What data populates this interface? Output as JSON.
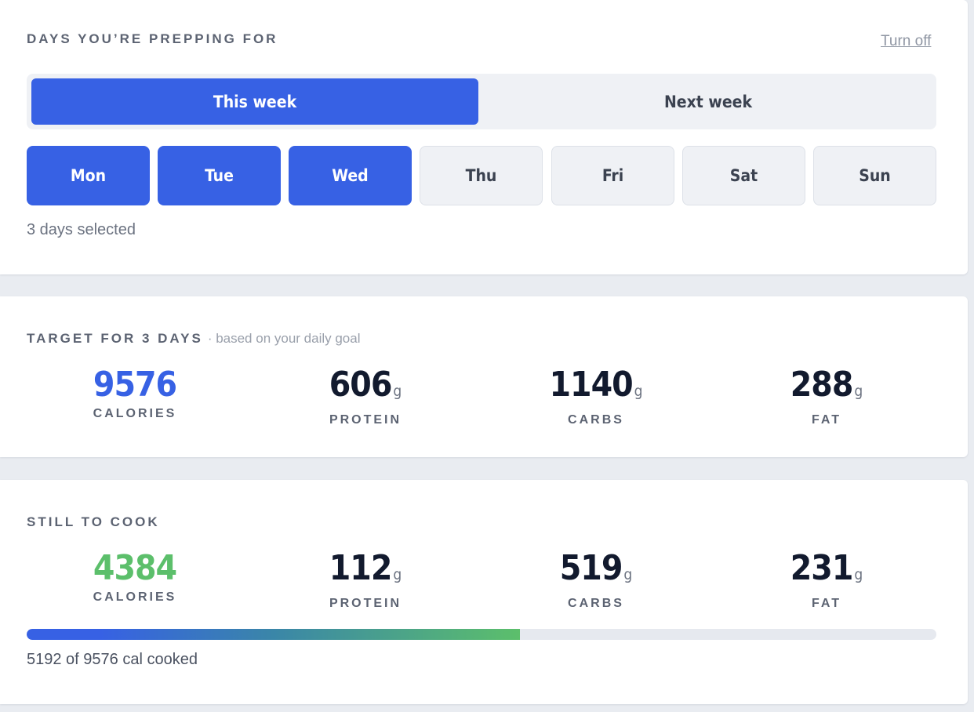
{
  "prep": {
    "title": "DAYS YOU’RE PREPPING FOR",
    "turn_off_label": "Turn off",
    "week_options": [
      "This week",
      "Next week"
    ],
    "selected_week": "This week",
    "days": [
      {
        "label": "Mon",
        "selected": true
      },
      {
        "label": "Tue",
        "selected": true
      },
      {
        "label": "Wed",
        "selected": true
      },
      {
        "label": "Thu",
        "selected": false
      },
      {
        "label": "Fri",
        "selected": false
      },
      {
        "label": "Sat",
        "selected": false
      },
      {
        "label": "Sun",
        "selected": false
      }
    ],
    "days_selected_text": "3 days selected"
  },
  "target": {
    "title": "TARGET FOR 3 DAYS",
    "subtitle": "· based on your daily goal",
    "calories": {
      "value": "9576",
      "label": "CALORIES"
    },
    "protein": {
      "value": "606",
      "unit": "g",
      "label": "PROTEIN"
    },
    "carbs": {
      "value": "1140",
      "unit": "g",
      "label": "CARBS"
    },
    "fat": {
      "value": "288",
      "unit": "g",
      "label": "FAT"
    }
  },
  "cook": {
    "title": "STILL TO COOK",
    "calories": {
      "value": "4384",
      "label": "CALORIES"
    },
    "protein": {
      "value": "112",
      "unit": "g",
      "label": "PROTEIN"
    },
    "carbs": {
      "value": "519",
      "unit": "g",
      "label": "CARBS"
    },
    "fat": {
      "value": "231",
      "unit": "g",
      "label": "FAT"
    },
    "progress_cooked": 5192,
    "progress_total": 9576,
    "progress_text": "5192 of 9576 cal cooked"
  },
  "colors": {
    "accent_blue": "#3761e4",
    "accent_green": "#5cbf6b"
  }
}
